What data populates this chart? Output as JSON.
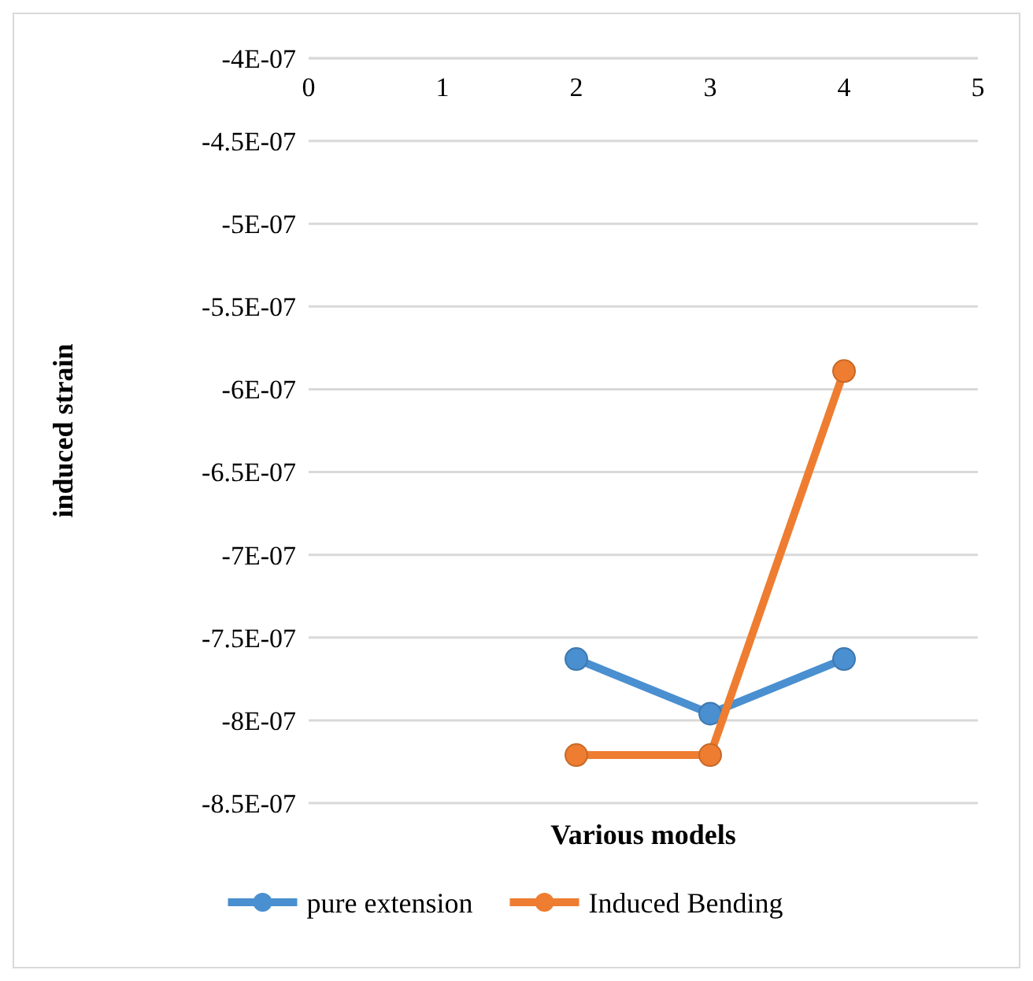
{
  "chart_data": {
    "type": "line",
    "xlabel": "Various models",
    "ylabel": "induced strain",
    "xlim": [
      0,
      5
    ],
    "xticks": [
      0,
      1,
      2,
      3,
      4,
      5
    ],
    "ylim": [
      -8.5e-07,
      -4e-07
    ],
    "yticks": [
      {
        "value": -4e-07,
        "label": "-4E-07"
      },
      {
        "value": -4.5e-07,
        "label": "-4.5E-07"
      },
      {
        "value": -5e-07,
        "label": "-5E-07"
      },
      {
        "value": -5.5e-07,
        "label": "-5.5E-07"
      },
      {
        "value": -6e-07,
        "label": "-6E-07"
      },
      {
        "value": -6.5e-07,
        "label": "-6.5E-07"
      },
      {
        "value": -7e-07,
        "label": "-7E-07"
      },
      {
        "value": -7.5e-07,
        "label": "-7.5E-07"
      },
      {
        "value": -8e-07,
        "label": "-8E-07"
      },
      {
        "value": -8.5e-07,
        "label": "-8.5E-07"
      }
    ],
    "x": [
      2,
      3,
      4
    ],
    "series": [
      {
        "name": "pure extension",
        "color": "#4a8fd0",
        "values": [
          -7.63e-07,
          -7.96e-07,
          -7.63e-07
        ]
      },
      {
        "name": "Induced Bending",
        "color": "#ee7d31",
        "values": [
          -8.21e-07,
          -8.21e-07,
          -5.89e-07
        ]
      }
    ],
    "grid": "y",
    "legend": "bottom",
    "marker": "circle",
    "line_style": "solid"
  }
}
